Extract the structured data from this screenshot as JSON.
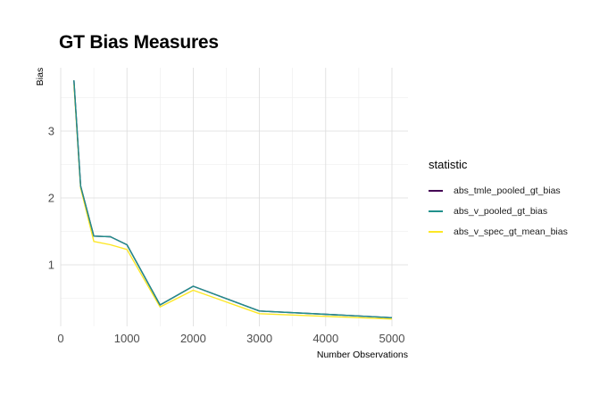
{
  "chart_data": {
    "type": "line",
    "title": "GT Bias Measures",
    "xlabel": "Number Observations",
    "ylabel": "Bias",
    "xlim": [
      0,
      5200
    ],
    "ylim": [
      0,
      4
    ],
    "x_ticks": [
      0,
      1000,
      2000,
      3000,
      4000,
      5000
    ],
    "y_ticks": [
      1,
      2,
      3
    ],
    "grid": true,
    "legend_title": "statistic",
    "legend_position": "right",
    "series": [
      {
        "name": "abs_tmle_pooled_gt_bias",
        "color": "#440154",
        "x": [
          200,
          300,
          500,
          750,
          1000,
          1500,
          2000,
          3000,
          4000,
          5000
        ],
        "values": [
          3.76,
          2.18,
          1.43,
          1.42,
          1.3,
          0.4,
          0.68,
          0.31,
          0.26,
          0.21
        ]
      },
      {
        "name": "abs_v_pooled_gt_bias",
        "color": "#21908C",
        "x": [
          200,
          300,
          500,
          750,
          1000,
          1500,
          2000,
          3000,
          4000,
          5000
        ],
        "values": [
          3.76,
          2.18,
          1.43,
          1.42,
          1.3,
          0.4,
          0.68,
          0.31,
          0.26,
          0.21
        ]
      },
      {
        "name": "abs_v_spec_gt_mean_bias",
        "color": "#FDE725",
        "x": [
          200,
          300,
          500,
          750,
          1000,
          1500,
          2000,
          3000,
          4000,
          5000
        ],
        "values": [
          3.7,
          2.15,
          1.35,
          1.3,
          1.23,
          0.37,
          0.62,
          0.27,
          0.23,
          0.19
        ]
      }
    ]
  }
}
